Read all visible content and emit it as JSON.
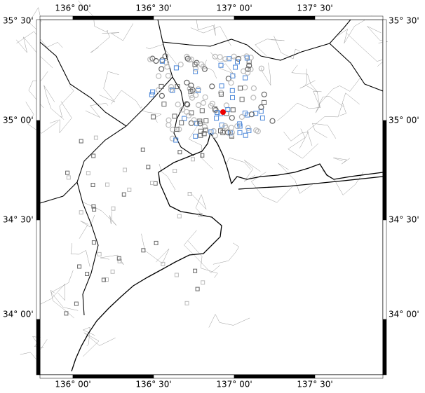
{
  "map": {
    "lon_labels": [
      "136° 00'",
      "136° 30'",
      "137° 00'",
      "137° 30'"
    ],
    "lat_labels": [
      "35° 30'",
      "35° 00'",
      "34° 30'",
      "34° 00'"
    ]
  }
}
